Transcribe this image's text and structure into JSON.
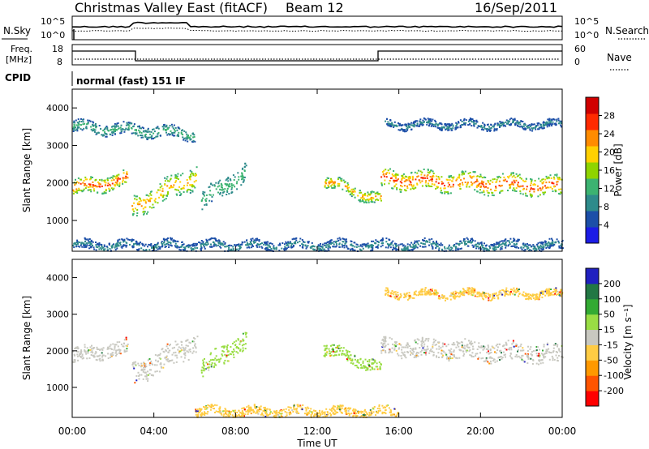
{
  "header": {
    "site": "Christmas Valley East (fitACF)",
    "beam": "Beam 12",
    "date": "16/Sep/2011"
  },
  "noise_panel": {
    "left_label": "N.Sky",
    "left_ticks": [
      "10^5",
      "10^0"
    ],
    "right_label": "N.Search",
    "right_ticks": [
      "10^5",
      "10^0"
    ]
  },
  "freq_panel": {
    "left_label_1": "Freq.",
    "left_label_2": "[MHz]",
    "left_ticks": [
      "18",
      "8"
    ],
    "right_label": "Nave",
    "right_ticks": [
      "60",
      "0"
    ]
  },
  "cpid": {
    "label": "CPID",
    "value": "normal (fast) 151 IF"
  },
  "colors": {
    "power_scale": [
      "#1c1ce6",
      "#1c4fa8",
      "#2e8b8b",
      "#3cb371",
      "#8fd400",
      "#ffd000",
      "#ff8c00",
      "#ff2a00",
      "#d00000"
    ],
    "velocity_scale": [
      "#2020c0",
      "#227744",
      "#33aa33",
      "#99dd44",
      "#c8c8c0",
      "#ffcc44",
      "#ff9900",
      "#ff5500",
      "#ff0000"
    ]
  },
  "chart_data": [
    {
      "type": "heatmap",
      "name": "power",
      "ylabel": "Slant Range [km]",
      "xlabel": "",
      "ylim": [
        180,
        4500
      ],
      "xlim": [
        0,
        24
      ],
      "y_ticks": [
        "1000",
        "2000",
        "3000",
        "4000"
      ],
      "colorbar_label": "Power [dB]",
      "colorbar_ticks": [
        "4",
        "8",
        "12",
        "16",
        "20",
        "24",
        "28"
      ],
      "features": [
        {
          "t": [
            0,
            2.7
          ],
          "range_center": [
            1850,
            2100
          ],
          "width": 400,
          "peak_db": 28
        },
        {
          "t": [
            2.9,
            6.1
          ],
          "range_center": [
            1350,
            2200
          ],
          "width": 600,
          "peak_db": 24
        },
        {
          "t": [
            6.3,
            8.5
          ],
          "range_center": [
            1500,
            2300
          ],
          "width": 500,
          "peak_db": 14
        },
        {
          "t": [
            12.3,
            15.1
          ],
          "range_center": [
            2050,
            1550
          ],
          "width": 300,
          "peak_db": 24
        },
        {
          "t": [
            15.1,
            24
          ],
          "range_center": [
            2100,
            1900
          ],
          "width": 500,
          "peak_db": 28
        },
        {
          "t": [
            0,
            24
          ],
          "range_center": [
            330,
            330
          ],
          "width": 250,
          "peak_db": 8
        },
        {
          "t": [
            0,
            6
          ],
          "range_center": [
            3500,
            3300
          ],
          "width": 300,
          "peak_db": 12
        },
        {
          "t": [
            15.3,
            24
          ],
          "range_center": [
            3550,
            3550
          ],
          "width": 200,
          "peak_db": 8
        }
      ]
    },
    {
      "type": "heatmap",
      "name": "velocity",
      "ylabel": "Slant Range [km]",
      "xlabel": "Time UT",
      "ylim": [
        180,
        4500
      ],
      "xlim": [
        0,
        24
      ],
      "y_ticks": [
        "1000",
        "2000",
        "3000",
        "4000"
      ],
      "x_ticks": [
        "00:00",
        "04:00",
        "08:00",
        "12:00",
        "16:00",
        "20:00",
        "00:00"
      ],
      "colorbar_label": "Velocity [m s⁻¹]",
      "colorbar_ticks": [
        "200",
        "100",
        "50",
        "15",
        "-15",
        "-50",
        "-100",
        "-200"
      ],
      "features": [
        {
          "t": [
            0,
            2.7
          ],
          "range_center": [
            1850,
            2100
          ],
          "width": 400,
          "velocity": 0
        },
        {
          "t": [
            2.9,
            6.1
          ],
          "range_center": [
            1350,
            2200
          ],
          "width": 600,
          "velocity": 0
        },
        {
          "t": [
            6.3,
            8.5
          ],
          "range_center": [
            1500,
            2300
          ],
          "width": 500,
          "velocity": 40
        },
        {
          "t": [
            12.3,
            15.1
          ],
          "range_center": [
            2050,
            1550
          ],
          "width": 300,
          "velocity": 30
        },
        {
          "t": [
            15.1,
            24
          ],
          "range_center": [
            2100,
            1900
          ],
          "width": 500,
          "velocity": 0
        },
        {
          "t": [
            6,
            16
          ],
          "range_center": [
            330,
            330
          ],
          "width": 250,
          "velocity": -50
        },
        {
          "t": [
            15.3,
            24
          ],
          "range_center": [
            3550,
            3550
          ],
          "width": 200,
          "velocity": -30
        }
      ]
    }
  ]
}
